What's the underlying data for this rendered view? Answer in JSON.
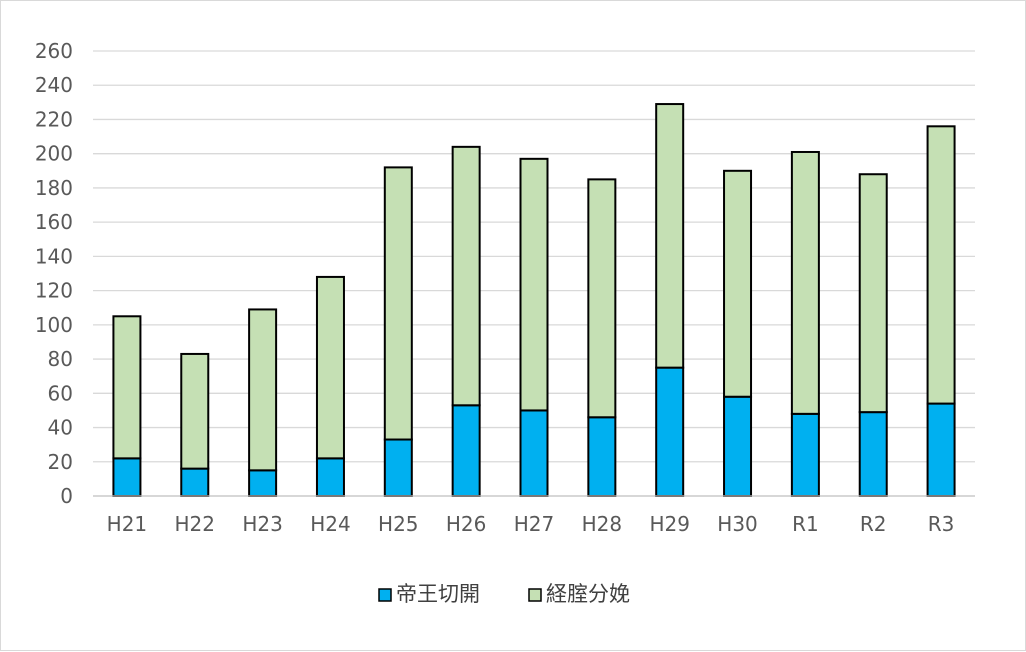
{
  "chart_data": {
    "type": "bar",
    "stacked": true,
    "title": "",
    "xlabel": "",
    "ylabel": "",
    "categories": [
      "H21",
      "H22",
      "H23",
      "H24",
      "H25",
      "H26",
      "H27",
      "H28",
      "H29",
      "H30",
      "R1",
      "R2",
      "R3"
    ],
    "series": [
      {
        "name": "帝王切開",
        "color": "#00b0f0",
        "values": [
          22,
          16,
          15,
          22,
          33,
          53,
          50,
          46,
          75,
          58,
          48,
          49,
          54
        ]
      },
      {
        "name": "経腟分娩",
        "color": "#c5e0b4",
        "values": [
          83,
          67,
          94,
          106,
          159,
          151,
          147,
          139,
          154,
          132,
          153,
          139,
          162
        ]
      }
    ],
    "ylim": [
      0,
      260
    ],
    "yticks": [
      0,
      20,
      40,
      60,
      80,
      100,
      120,
      140,
      160,
      180,
      200,
      220,
      240,
      260
    ],
    "grid": true,
    "legend_position": "bottom"
  }
}
